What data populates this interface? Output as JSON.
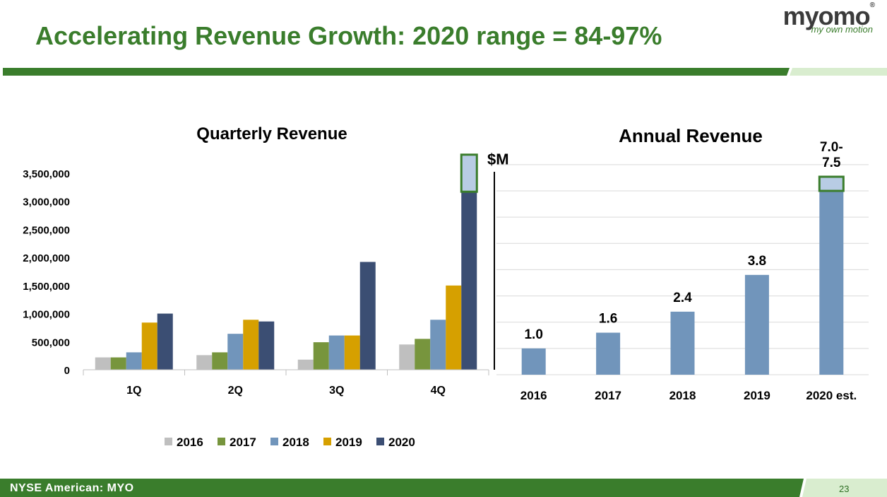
{
  "slide": {
    "title": "Accelerating Revenue Growth: 2020 range = 84-97%",
    "logo_text": "myomo",
    "logo_reg": "®",
    "logo_tagline": "my own motion",
    "footer_text": "NYSE American: MYO",
    "page_number": "23"
  },
  "colors": {
    "brand_green": "#3a7d2c",
    "light_green": "#d9edcf",
    "navy": "#3b4e73",
    "steel_blue": "#7195bb",
    "olive": "#77953d",
    "gold": "#d6a000",
    "gray": "#bfbfbf",
    "estimate_fill": "#b8cce4"
  },
  "chart_data": [
    {
      "type": "bar",
      "title": "Quarterly Revenue",
      "categories": [
        "1Q",
        "2Q",
        "3Q",
        "4Q"
      ],
      "series": [
        {
          "name": "2016",
          "color": "#bfbfbf",
          "values": [
            220000,
            260000,
            180000,
            450000
          ]
        },
        {
          "name": "2017",
          "color": "#77953d",
          "values": [
            220000,
            310000,
            490000,
            550000
          ]
        },
        {
          "name": "2018",
          "color": "#7195bb",
          "values": [
            310000,
            640000,
            610000,
            890000
          ]
        },
        {
          "name": "2019",
          "color": "#d6a000",
          "values": [
            840000,
            890000,
            610000,
            1500000
          ]
        },
        {
          "name": "2020",
          "color": "#3b4e73",
          "values": [
            1000000,
            860000,
            1920000,
            3170000
          ]
        }
      ],
      "estimate_range": {
        "category": "4Q",
        "series": "2020",
        "from": 3170000,
        "to": 3830000
      },
      "ylim": [
        0,
        3500000
      ],
      "yticks": [
        0,
        500000,
        1000000,
        1500000,
        2000000,
        2500000,
        3000000,
        3500000
      ],
      "ytick_labels": [
        "0",
        "500,000",
        "1,000,000",
        "1,500,000",
        "2,000,000",
        "2,500,000",
        "3,000,000",
        "3,500,000"
      ],
      "legend_position": "bottom",
      "grid": false
    },
    {
      "type": "bar",
      "title": "Annual Revenue",
      "ylabel": "$M",
      "categories": [
        "2016",
        "2017",
        "2018",
        "2019",
        "2020 est."
      ],
      "values": [
        1.0,
        1.6,
        2.4,
        3.8,
        7.0
      ],
      "data_labels": [
        "1.0",
        "1.6",
        "2.4",
        "3.8",
        "7.0-\n7.5"
      ],
      "estimate_range": {
        "category": "2020 est.",
        "from": 7.0,
        "to": 7.5
      },
      "color": "#7195bb",
      "grid": true
    }
  ]
}
